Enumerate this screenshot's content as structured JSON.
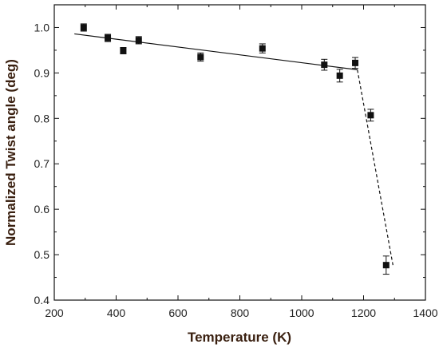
{
  "chart_data": {
    "type": "scatter",
    "xlabel": "Temperature (K)",
    "ylabel": "Normalized Twist angle (deg)",
    "xlim": [
      200,
      1400
    ],
    "ylim": [
      0.4,
      1.05
    ],
    "x_ticks": [
      "200",
      "400",
      "600",
      "800",
      "1000",
      "1200",
      "1400"
    ],
    "y_ticks": [
      "0.4",
      "0.5",
      "0.6",
      "0.7",
      "0.8",
      "0.9",
      "1.0"
    ],
    "grid": false,
    "legend": "none",
    "points": [
      {
        "x": 295,
        "y": 1.0,
        "err": 0.008
      },
      {
        "x": 373,
        "y": 0.977,
        "err": 0.008
      },
      {
        "x": 423,
        "y": 0.949,
        "err": 0.007
      },
      {
        "x": 473,
        "y": 0.972,
        "err": 0.008
      },
      {
        "x": 673,
        "y": 0.935,
        "err": 0.009
      },
      {
        "x": 873,
        "y": 0.954,
        "err": 0.01
      },
      {
        "x": 1073,
        "y": 0.918,
        "err": 0.012
      },
      {
        "x": 1123,
        "y": 0.894,
        "err": 0.014
      },
      {
        "x": 1173,
        "y": 0.922,
        "err": 0.012
      },
      {
        "x": 1223,
        "y": 0.807,
        "err": 0.013
      },
      {
        "x": 1273,
        "y": 0.477,
        "err": 0.02
      }
    ],
    "fit_lines": [
      {
        "style": "solid",
        "x": [
          265,
          1180
        ],
        "y": [
          0.986,
          0.907
        ]
      },
      {
        "style": "dashed",
        "x": [
          1180,
          1295
        ],
        "y": [
          0.907,
          0.477
        ]
      }
    ]
  }
}
